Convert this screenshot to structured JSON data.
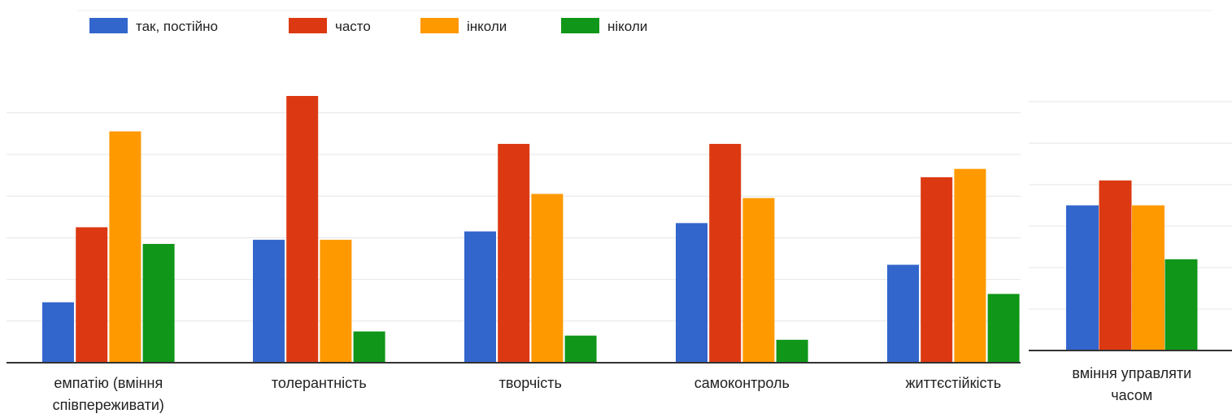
{
  "chart_data": [
    {
      "type": "bar",
      "legend_position": "top-left",
      "grid": true,
      "title": "",
      "xlabel": "",
      "ylabel": "",
      "ylim": [
        0,
        6.4
      ],
      "categories": [
        [
          "емпатію (вміння",
          "співпереживати)"
        ],
        [
          "толерантність"
        ],
        [
          "творчість"
        ],
        [
          "самоконтроль"
        ],
        [
          "життєстійкість"
        ]
      ],
      "series": [
        {
          "name": "так, постійно",
          "color": "#3366cc",
          "values": [
            1.45,
            2.95,
            3.15,
            3.35,
            2.35
          ]
        },
        {
          "name": "часто",
          "color": "#dc3912",
          "values": [
            3.25,
            6.4,
            5.25,
            5.25,
            4.45
          ]
        },
        {
          "name": "інколи",
          "color": "#ff9900",
          "values": [
            5.55,
            2.95,
            4.05,
            3.95,
            4.65
          ]
        },
        {
          "name": "ніколи",
          "color": "#109618",
          "values": [
            2.85,
            0.75,
            0.65,
            0.55,
            1.65
          ]
        }
      ]
    },
    {
      "type": "bar",
      "grid": true,
      "title": "",
      "xlabel": "",
      "ylabel": "",
      "ylim": [
        0,
        6
      ],
      "categories": [
        [
          "вміння управляти",
          "часом"
        ]
      ],
      "series": [
        {
          "name": "так, постійно",
          "color": "#3366cc",
          "values": [
            3.5
          ]
        },
        {
          "name": "часто",
          "color": "#dc3912",
          "values": [
            4.1
          ]
        },
        {
          "name": "інколи",
          "color": "#ff9900",
          "values": [
            3.5
          ]
        },
        {
          "name": "ніколи",
          "color": "#109618",
          "values": [
            2.2
          ]
        }
      ]
    }
  ]
}
